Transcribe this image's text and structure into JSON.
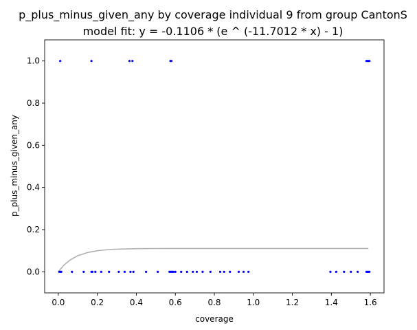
{
  "chart_data": {
    "type": "scatter",
    "title": "p_plus_minus_given_any by coverage individual 9 from group CantonS",
    "subtitle": "model fit: y = -0.1106 * (e ^ (-11.7012 * x) - 1)",
    "xlabel": "coverage",
    "ylabel": "p_plus_minus_given_any",
    "xlim": [
      -0.07,
      1.67
    ],
    "ylim": [
      -0.1,
      1.1
    ],
    "xticks": [
      0.0,
      0.2,
      0.4,
      0.6,
      0.8,
      1.0,
      1.2,
      1.4,
      1.6
    ],
    "xtick_labels": [
      "0.0",
      "0.2",
      "0.4",
      "0.6",
      "0.8",
      "1.0",
      "1.2",
      "1.4",
      "1.6"
    ],
    "yticks": [
      0.0,
      0.2,
      0.4,
      0.6,
      0.8,
      1.0
    ],
    "ytick_labels": [
      "0.0",
      "0.2",
      "0.4",
      "0.6",
      "0.8",
      "1.0"
    ],
    "grid": false,
    "point_color": "#0000ff",
    "fit_color": "#b0b0b0",
    "fit_model": {
      "a": -0.1106,
      "b": -11.7012
    },
    "fit_x": [
      0.0,
      0.03,
      0.06,
      0.1,
      0.15,
      0.2,
      0.25,
      0.3,
      0.4,
      0.5,
      0.6,
      0.8,
      1.0,
      1.2,
      1.4,
      1.59
    ],
    "points": [
      {
        "x": 0.005,
        "y": 0
      },
      {
        "x": 0.01,
        "y": 0
      },
      {
        "x": 0.015,
        "y": 0
      },
      {
        "x": 0.07,
        "y": 0
      },
      {
        "x": 0.13,
        "y": 0
      },
      {
        "x": 0.17,
        "y": 0
      },
      {
        "x": 0.175,
        "y": 0
      },
      {
        "x": 0.19,
        "y": 0
      },
      {
        "x": 0.22,
        "y": 0
      },
      {
        "x": 0.26,
        "y": 0
      },
      {
        "x": 0.31,
        "y": 0
      },
      {
        "x": 0.34,
        "y": 0
      },
      {
        "x": 0.37,
        "y": 0
      },
      {
        "x": 0.385,
        "y": 0
      },
      {
        "x": 0.45,
        "y": 0
      },
      {
        "x": 0.51,
        "y": 0
      },
      {
        "x": 0.57,
        "y": 0
      },
      {
        "x": 0.575,
        "y": 0
      },
      {
        "x": 0.58,
        "y": 0
      },
      {
        "x": 0.585,
        "y": 0
      },
      {
        "x": 0.59,
        "y": 0
      },
      {
        "x": 0.6,
        "y": 0
      },
      {
        "x": 0.63,
        "y": 0
      },
      {
        "x": 0.66,
        "y": 0
      },
      {
        "x": 0.69,
        "y": 0
      },
      {
        "x": 0.71,
        "y": 0
      },
      {
        "x": 0.74,
        "y": 0
      },
      {
        "x": 0.78,
        "y": 0
      },
      {
        "x": 0.83,
        "y": 0
      },
      {
        "x": 0.85,
        "y": 0
      },
      {
        "x": 0.88,
        "y": 0
      },
      {
        "x": 0.925,
        "y": 0
      },
      {
        "x": 0.95,
        "y": 0
      },
      {
        "x": 0.975,
        "y": 0
      },
      {
        "x": 1.395,
        "y": 0
      },
      {
        "x": 1.425,
        "y": 0
      },
      {
        "x": 1.465,
        "y": 0
      },
      {
        "x": 1.5,
        "y": 0
      },
      {
        "x": 1.535,
        "y": 0
      },
      {
        "x": 1.58,
        "y": 0
      },
      {
        "x": 1.585,
        "y": 0
      },
      {
        "x": 1.59,
        "y": 0
      },
      {
        "x": 1.595,
        "y": 0
      },
      {
        "x": 0.01,
        "y": 1
      },
      {
        "x": 0.17,
        "y": 1
      },
      {
        "x": 0.365,
        "y": 1
      },
      {
        "x": 0.38,
        "y": 1
      },
      {
        "x": 0.575,
        "y": 1
      },
      {
        "x": 0.58,
        "y": 1
      },
      {
        "x": 1.58,
        "y": 1
      },
      {
        "x": 1.585,
        "y": 1
      },
      {
        "x": 1.59,
        "y": 1
      },
      {
        "x": 1.595,
        "y": 1
      }
    ]
  }
}
